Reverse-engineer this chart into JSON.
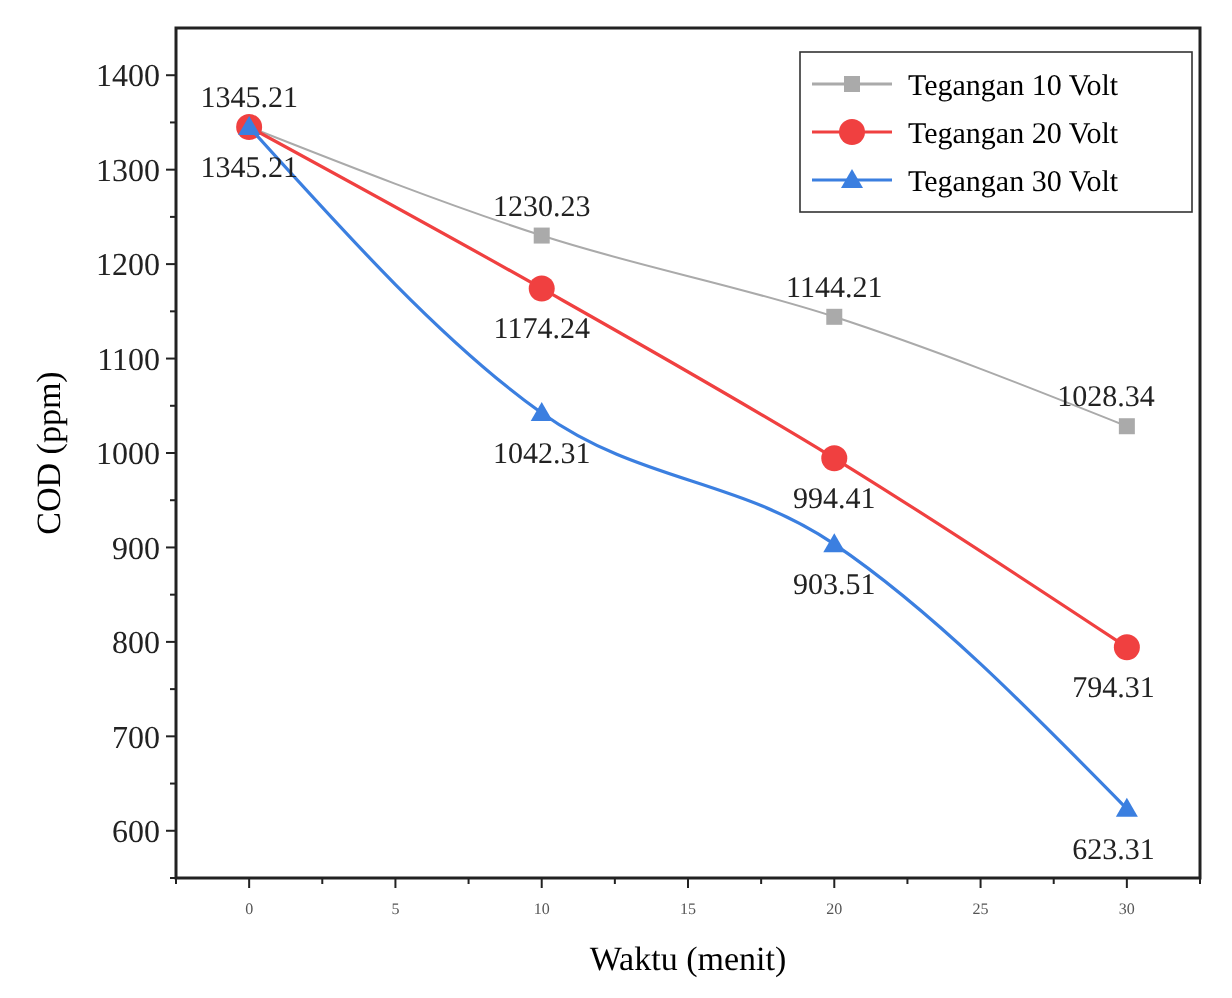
{
  "chart_data": {
    "type": "line",
    "xlabel": "Waktu (menit)",
    "ylabel": "COD (ppm)",
    "x": [
      0,
      10,
      20,
      30
    ],
    "xlim": [
      -2.5,
      32.5
    ],
    "xticks": [
      {
        "value": -2.5,
        "label": null
      },
      0,
      {
        "value": 2.5,
        "label": null
      },
      5,
      {
        "value": 7.5,
        "label": null
      },
      10,
      {
        "value": 12.5,
        "label": null
      },
      15,
      {
        "value": 17.5,
        "label": null
      },
      20,
      {
        "value": 22.5,
        "label": null
      },
      25,
      {
        "value": 27.5,
        "label": null
      },
      30,
      {
        "value": 32.5,
        "label": null
      }
    ],
    "ylim": [
      550,
      1450
    ],
    "yticks": [
      {
        "value": 550,
        "label": null
      },
      600,
      {
        "value": 650,
        "label": null
      },
      700,
      {
        "value": 750,
        "label": null
      },
      800,
      {
        "value": 850,
        "label": null
      },
      900,
      {
        "value": 950,
        "label": null
      },
      1000,
      {
        "value": 1050,
        "label": null
      },
      1100,
      {
        "value": 1150,
        "label": null
      },
      1200,
      {
        "value": 1250,
        "label": null
      },
      1300,
      {
        "value": 1350,
        "label": null
      },
      1400
    ],
    "grid": false,
    "legend": "top right",
    "series": [
      {
        "name": "Tegangan 10 Volt",
        "color": "#aaaaaa",
        "marker": "square",
        "values": [
          1345.21,
          1230.23,
          1144.21,
          1028.34
        ],
        "value_labels": [
          "1345.21",
          "1230.23",
          "1144.21",
          "1028.34"
        ]
      },
      {
        "name": "Tegangan 20 Volt",
        "color": "#f04040",
        "marker": "circle",
        "values": [
          1345.21,
          1174.24,
          994.41,
          794.31
        ],
        "value_labels": [
          null,
          "1174.24",
          "994.41",
          "794.31"
        ]
      },
      {
        "name": "Tegangan 30 Volt",
        "color": "#3b7fe0",
        "marker": "triangle",
        "values": [
          1345.21,
          1042.31,
          903.51,
          623.31
        ],
        "value_labels": [
          "1345.21",
          "1042.31",
          "903.51",
          "623.31"
        ]
      }
    ]
  }
}
